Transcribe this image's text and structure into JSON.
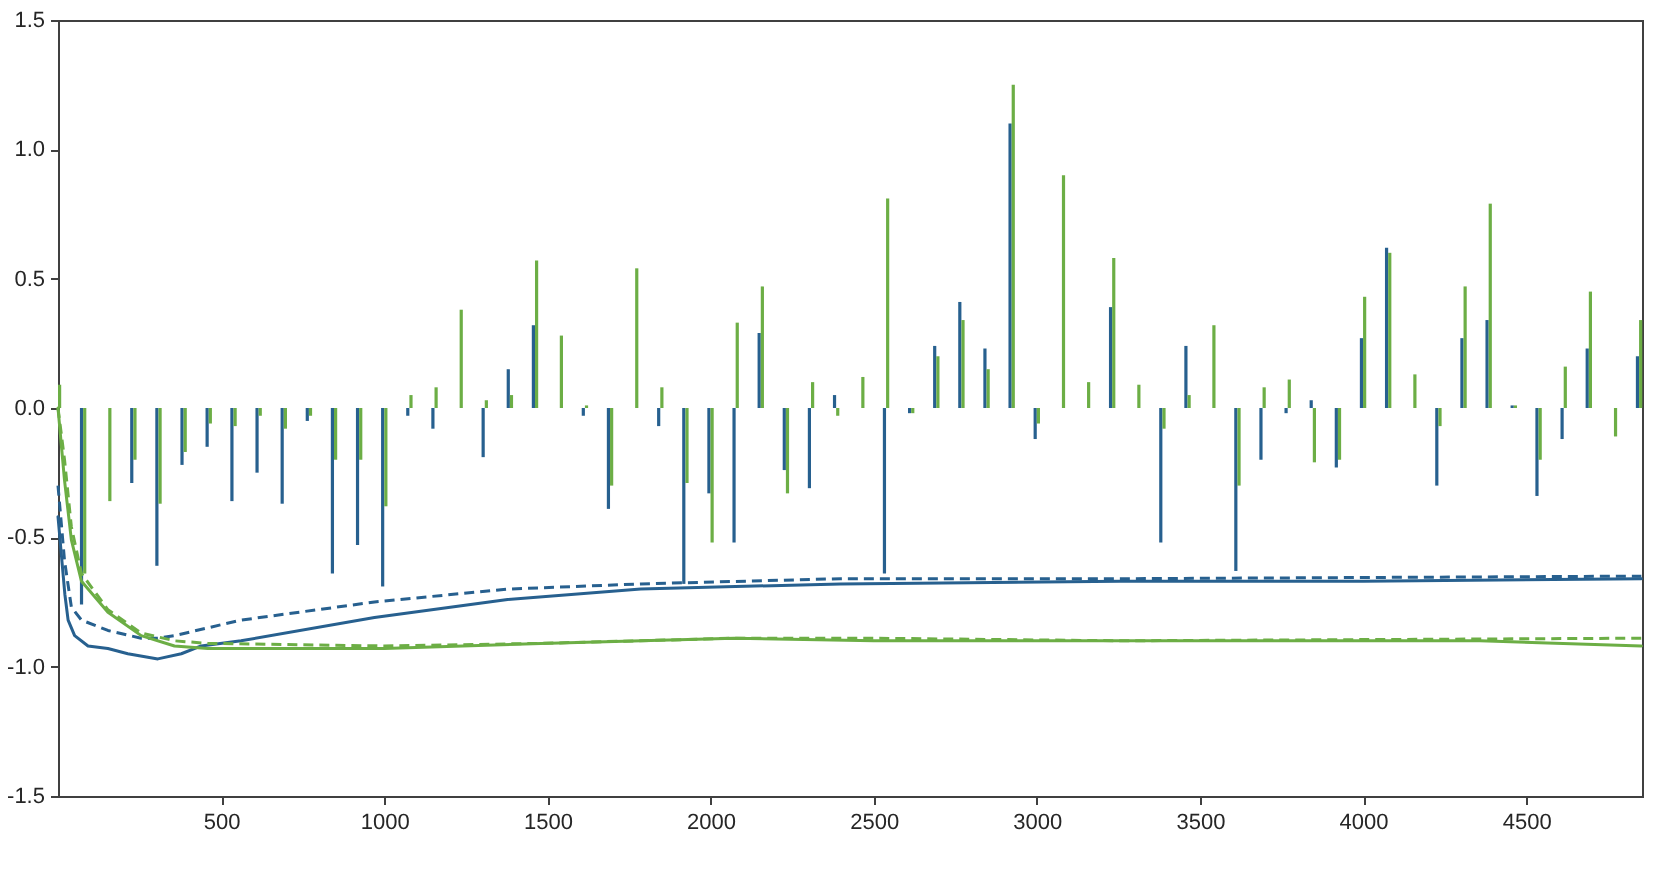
{
  "chart_data": {
    "type": "bar",
    "x": [
      0,
      77,
      154,
      231,
      308,
      385,
      462,
      538,
      615,
      692,
      769,
      846,
      923,
      1000,
      1077,
      1154,
      1231,
      1308,
      1385,
      1462,
      1538,
      1615,
      1692,
      1769,
      1846,
      1923,
      2000,
      2077,
      2154,
      2231,
      2308,
      2385,
      2462,
      2538,
      2615,
      2692,
      2769,
      2846,
      2923,
      3000,
      3077,
      3154,
      3231,
      3308,
      3385,
      3462,
      3538,
      3615,
      3692,
      3769,
      3846,
      3923,
      4000,
      4077,
      4154,
      4231,
      4308,
      4385,
      4462,
      4538,
      4615,
      4692,
      4769,
      4846
    ],
    "xlim": [
      0,
      4855
    ],
    "xticks": [
      500,
      1000,
      1500,
      2000,
      2500,
      3000,
      3500,
      4000,
      4500
    ],
    "ylim": [
      -1.5,
      1.5
    ],
    "yticks": [
      -1.5,
      {
        "value": -1,
        "label": "-1.0"
      },
      -0.5,
      {
        "value": 0,
        "label": "0.0"
      },
      0.5,
      {
        "value": 1,
        "label": "1.0"
      },
      1.5
    ],
    "grid": false,
    "series": [
      {
        "color": "#27608f",
        "values": [
          null,
          -0.76,
          null,
          -0.29,
          -0.61,
          -0.22,
          -0.15,
          -0.36,
          -0.25,
          -0.37,
          -0.05,
          -0.64,
          -0.53,
          -0.69,
          -0.03,
          -0.08,
          null,
          -0.19,
          0.15,
          0.32,
          null,
          -0.03,
          -0.39,
          null,
          -0.07,
          -0.68,
          -0.33,
          -0.52,
          0.29,
          -0.24,
          -0.31,
          0.05,
          null,
          -0.64,
          -0.02,
          0.24,
          0.41,
          0.23,
          1.1,
          -0.12,
          null,
          null,
          0.39,
          null,
          -0.52,
          0.24,
          null,
          -0.63,
          -0.2,
          -0.02,
          0.03,
          -0.23,
          0.27,
          0.62,
          null,
          -0.3,
          0.27,
          0.34,
          0.01,
          -0.34,
          -0.12,
          0.23,
          null,
          0.2
        ]
      },
      {
        "color": "#6cae45",
        "values": [
          0.09,
          -0.64,
          -0.36,
          -0.2,
          -0.37,
          -0.17,
          -0.06,
          -0.07,
          -0.03,
          -0.08,
          -0.03,
          -0.2,
          -0.2,
          -0.38,
          0.05,
          0.08,
          0.38,
          0.03,
          0.05,
          0.57,
          0.28,
          0.01,
          -0.3,
          0.54,
          0.08,
          -0.29,
          -0.52,
          0.33,
          0.47,
          -0.33,
          0.1,
          -0.03,
          0.12,
          0.81,
          -0.02,
          0.2,
          0.34,
          0.15,
          1.25,
          -0.06,
          0.9,
          0.1,
          0.58,
          0.09,
          -0.08,
          0.05,
          0.32,
          -0.3,
          0.08,
          0.11,
          -0.21,
          -0.2,
          0.43,
          0.6,
          0.13,
          -0.07,
          0.47,
          0.79,
          0.01,
          -0.2,
          0.16,
          0.45,
          -0.11,
          0.34
        ]
      },
      {
        "type": "line",
        "color": "#27608f",
        "line_style": "solid",
        "x": [
          0,
          21,
          31,
          51,
          92,
          153,
          214,
          306,
          378,
          439,
          561,
          970,
          1378,
          1786,
          2398,
          3255,
          4000,
          4853
        ],
        "values": [
          -0.42,
          -0.72,
          -0.82,
          -0.88,
          -0.92,
          -0.93,
          -0.95,
          -0.97,
          -0.95,
          -0.92,
          -0.9,
          -0.81,
          -0.74,
          -0.7,
          -0.68,
          -0.67,
          -0.67,
          -0.66
        ]
      },
      {
        "type": "line",
        "color": "#27608f",
        "line_style": "dashed",
        "x": [
          0,
          20,
          41,
          72,
          153,
          255,
          306,
          357,
          561,
          970,
          1378,
          1786,
          2398,
          3255,
          4853
        ],
        "values": [
          -0.3,
          -0.59,
          -0.77,
          -0.82,
          -0.86,
          -0.89,
          -0.89,
          -0.88,
          -0.82,
          -0.75,
          -0.7,
          -0.68,
          -0.66,
          -0.66,
          -0.65
        ]
      },
      {
        "type": "line",
        "color": "#6cae45",
        "line_style": "solid",
        "x": [
          0,
          20,
          41,
          72,
          153,
          255,
          357,
          459,
          1000,
          1480,
          2072,
          2500,
          3255,
          4358,
          4853
        ],
        "values": [
          0.0,
          -0.28,
          -0.51,
          -0.67,
          -0.79,
          -0.88,
          -0.92,
          -0.93,
          -0.93,
          -0.91,
          -0.89,
          -0.9,
          -0.9,
          -0.9,
          -0.92
        ]
      },
      {
        "type": "line",
        "color": "#6cae45",
        "line_style": "dashed",
        "x": [
          0,
          20,
          41,
          72,
          153,
          255,
          357,
          459,
          1000,
          1480,
          2072,
          2500,
          3255,
          4853
        ],
        "values": [
          0.0,
          -0.2,
          -0.46,
          -0.64,
          -0.78,
          -0.87,
          -0.9,
          -0.91,
          -0.92,
          -0.91,
          -0.89,
          -0.89,
          -0.9,
          -0.89
        ]
      }
    ]
  }
}
